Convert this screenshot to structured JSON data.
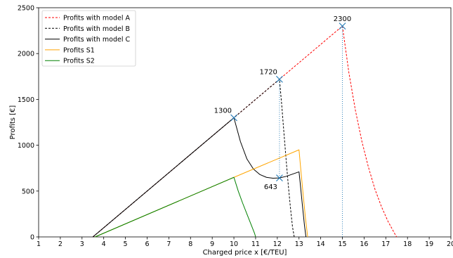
{
  "chart_data": {
    "type": "line",
    "title": "",
    "xlabel": "Charged price x [€/TEU]",
    "ylabel": "Profits [€]",
    "xlim": [
      1,
      20
    ],
    "ylim": [
      0,
      2500
    ],
    "x_ticks": [
      "1",
      "2",
      "3",
      "4",
      "5",
      "6",
      "7",
      "8",
      "9",
      "10",
      "11",
      "12",
      "13",
      "14",
      "15",
      "16",
      "17",
      "18",
      "19",
      "20"
    ],
    "y_ticks": [
      "0",
      "500",
      "1000",
      "1500",
      "2000",
      "2500"
    ],
    "grid": false,
    "legend_position": "top-left",
    "series": [
      {
        "name": "Profits with model A",
        "color": "#ff0000",
        "style": "dashed",
        "points": [
          [
            3.5,
            0
          ],
          [
            15,
            2300
          ],
          [
            15.3,
            1790
          ],
          [
            15.6,
            1380
          ],
          [
            15.9,
            1040
          ],
          [
            16.2,
            760
          ],
          [
            16.5,
            520
          ],
          [
            16.8,
            330
          ],
          [
            17.1,
            170
          ],
          [
            17.4,
            40
          ],
          [
            17.5,
            0
          ]
        ]
      },
      {
        "name": "Profits with model B",
        "color": "#000000",
        "style": "dashed",
        "points": [
          [
            3.5,
            0
          ],
          [
            12.1,
            1720
          ],
          [
            12.2,
            1450
          ],
          [
            12.3,
            1150
          ],
          [
            12.4,
            860
          ],
          [
            12.5,
            580
          ],
          [
            12.6,
            330
          ],
          [
            12.7,
            110
          ],
          [
            12.78,
            0
          ]
        ]
      },
      {
        "name": "Profits with model C",
        "color": "#000000",
        "style": "solid",
        "points": [
          [
            3.5,
            0
          ],
          [
            10,
            1300
          ],
          [
            10.3,
            1040
          ],
          [
            10.6,
            850
          ],
          [
            10.9,
            740
          ],
          [
            11.2,
            680
          ],
          [
            11.5,
            650
          ],
          [
            11.8,
            640
          ],
          [
            12.1,
            643
          ],
          [
            12.4,
            660
          ],
          [
            12.7,
            685
          ],
          [
            13,
            710
          ],
          [
            13.05,
            600
          ],
          [
            13.15,
            360
          ],
          [
            13.25,
            130
          ],
          [
            13.32,
            0
          ]
        ]
      },
      {
        "name": "Profits S1",
        "color": "#ffa500",
        "style": "solid",
        "points": [
          [
            3.6,
            0
          ],
          [
            10,
            650
          ],
          [
            13,
            950
          ],
          [
            13.1,
            690
          ],
          [
            13.2,
            440
          ],
          [
            13.3,
            200
          ],
          [
            13.4,
            0
          ]
        ]
      },
      {
        "name": "Profits S2",
        "color": "#008000",
        "style": "solid",
        "points": [
          [
            3.6,
            0
          ],
          [
            10,
            650
          ],
          [
            10.2,
            500
          ],
          [
            10.4,
            370
          ],
          [
            10.6,
            250
          ],
          [
            10.8,
            130
          ],
          [
            10.95,
            40
          ],
          [
            11,
            0
          ]
        ]
      }
    ],
    "vertical_lines": [
      {
        "x": 12.1,
        "y_from": 643,
        "y_to": 1720,
        "color": "#1f77b4"
      },
      {
        "x": 15,
        "y_from": 0,
        "y_to": 2300,
        "color": "#1f77b4"
      }
    ],
    "markers": [
      {
        "x": 15,
        "y": 2300,
        "label": "2300"
      },
      {
        "x": 12.1,
        "y": 1720,
        "label": "1720"
      },
      {
        "x": 10,
        "y": 1300,
        "label": "1300"
      },
      {
        "x": 12.1,
        "y": 643,
        "label": "643"
      }
    ]
  }
}
